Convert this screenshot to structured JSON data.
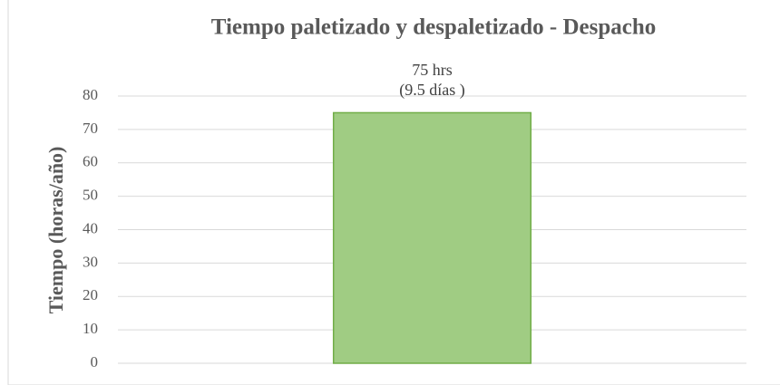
{
  "chart_data": {
    "type": "bar",
    "title": "Tiempo paletizado y despaletizado - Despacho",
    "ylabel": "Tiempo (horas/año)",
    "categories": [
      null
    ],
    "values": [
      75
    ],
    "value_labels": [
      "75 hrs\n(9.5 días )"
    ],
    "color": "#a0cc83",
    "edge_color": "#70ad47",
    "ylim": [
      0,
      80
    ],
    "yticks": [
      0,
      10,
      20,
      30,
      40,
      50,
      60,
      70,
      80
    ],
    "grid": true
  }
}
